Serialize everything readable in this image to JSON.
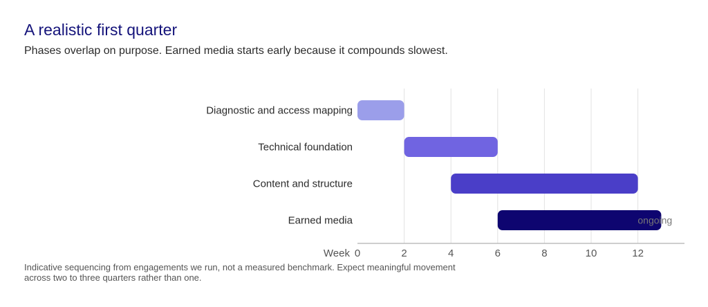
{
  "chart_data": {
    "type": "gantt",
    "title": "A realistic first quarter",
    "subtitle": "Phases overlap on purpose. Earned media starts early because it compounds slowest.",
    "xlabel": "Week",
    "x_ticks": [
      0,
      2,
      4,
      6,
      8,
      10,
      12
    ],
    "xlim": [
      0,
      14
    ],
    "grid": true,
    "tasks": [
      {
        "name": "Diagnostic and access mapping",
        "start": 0,
        "end": 2,
        "color": "#9b9eea"
      },
      {
        "name": "Technical foundation",
        "start": 2,
        "end": 6,
        "color": "#7064e1"
      },
      {
        "name": "Content and structure",
        "start": 4,
        "end": 12,
        "color": "#4a3ec8"
      },
      {
        "name": "Earned media",
        "start": 6,
        "end": 13,
        "color": "#0e0570",
        "label": "ongoing"
      }
    ],
    "footnote": "Indicative sequencing from engagements we run, not a measured benchmark. Expect meaningful movement across two to three quarters rather than one."
  }
}
